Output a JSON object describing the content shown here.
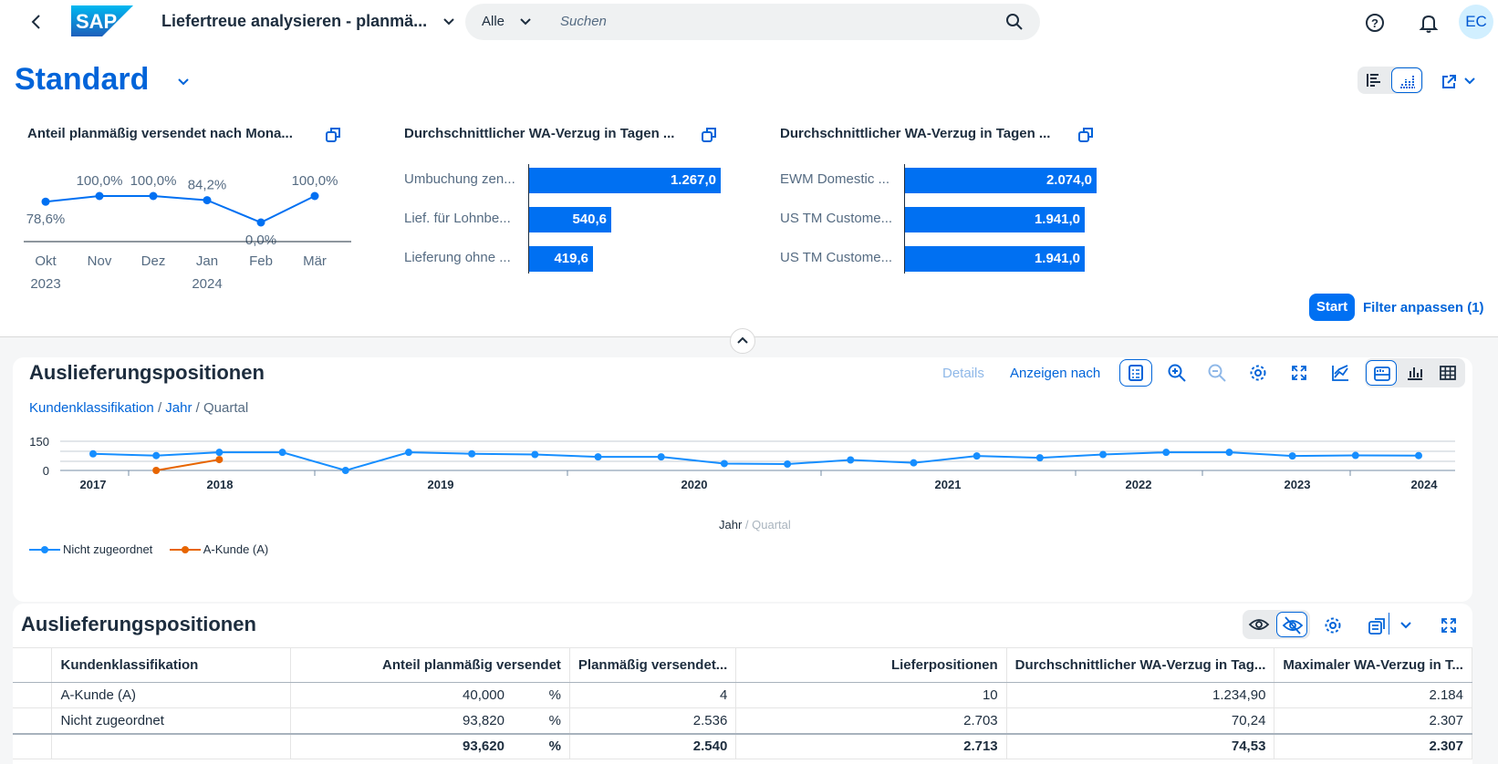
{
  "shell": {
    "title": "Liefertreue analysieren - planmä...",
    "scope": "Alle",
    "search_placeholder": "Suchen",
    "avatar": "EC"
  },
  "header": {
    "variant": "Standard",
    "start_label": "Start",
    "filter_label": "Filter anpassen (1)"
  },
  "cards": [
    {
      "title": "Anteil planmäßig versendet nach Mona...",
      "chart_data": {
        "type": "line",
        "categories": [
          "Okt",
          "Nov",
          "Dez",
          "Jan",
          "Feb",
          "Mär"
        ],
        "years": [
          "2023",
          "2024"
        ],
        "values": [
          78.6,
          100.0,
          100.0,
          84.2,
          0.0,
          100.0
        ],
        "value_labels": [
          "78,6%",
          "100,0%",
          "100,0%",
          "84,2%",
          "0,0%",
          "100,0%"
        ]
      }
    },
    {
      "title": "Durchschnittlicher WA-Verzug in Tagen ...",
      "chart_data": {
        "type": "bar",
        "categories": [
          "Umbuchung zen...",
          "Lief. für Lohnbe...",
          "Lieferung ohne ..."
        ],
        "values": [
          1267.0,
          540.6,
          419.6
        ],
        "value_labels": [
          "1.267,0",
          "540,6",
          "419,6"
        ]
      }
    },
    {
      "title": "Durchschnittlicher WA-Verzug in Tagen ...",
      "chart_data": {
        "type": "bar",
        "categories": [
          "EWM Domestic ...",
          "US TM Custome...",
          "US TM Custome..."
        ],
        "values": [
          2074.0,
          1941.0,
          1941.0
        ],
        "value_labels": [
          "2.074,0",
          "1.941,0",
          "1.941,0"
        ]
      }
    }
  ],
  "chart_panel": {
    "title": "Auslieferungspositionen",
    "details_label": "Details",
    "show_by_label": "Anzeigen nach",
    "breadcrumb": [
      "Kundenklassifikation",
      "Jahr",
      "Quartal"
    ],
    "axis_title_main": "Jahr",
    "axis_title_sub": "Quartal",
    "chart_data": {
      "type": "line",
      "ylim": [
        0,
        150
      ],
      "y_ticks": [
        "150",
        "0"
      ],
      "year_labels": [
        "2017",
        "2018",
        "2019",
        "2020",
        "2021",
        "2022",
        "2023",
        "2024"
      ],
      "series": [
        {
          "name": "Nicht zugeordnet",
          "color": "#168eff",
          "values": [
            92,
            82,
            100,
            100,
            0,
            100,
            92,
            88,
            75,
            75,
            38,
            35,
            58,
            42,
            80,
            70,
            88,
            100,
            100,
            80,
            83,
            82
          ]
        },
        {
          "name": "A-Kunde (A)",
          "color": "#e76500",
          "values": [
            null,
            0,
            60
          ]
        }
      ]
    }
  },
  "table_panel": {
    "title": "Auslieferungspositionen",
    "columns": [
      "Kundenklassifikation",
      "Anteil planmäßig versendet",
      "Planmäßig versendet...",
      "Lieferpositionen",
      "Durchschnittlicher WA-Verzug in Tag...",
      "Maximaler WA-Verzug in T..."
    ],
    "unit": "%",
    "rows": [
      [
        "A-Kunde (A)",
        "40,000",
        "4",
        "10",
        "1.234,90",
        "2.184"
      ],
      [
        "Nicht zugeordnet",
        "93,820",
        "2.536",
        "2.703",
        "70,24",
        "2.307"
      ]
    ],
    "total": [
      "",
      "93,620",
      "2.540",
      "2.713",
      "74,53",
      "2.307"
    ]
  }
}
